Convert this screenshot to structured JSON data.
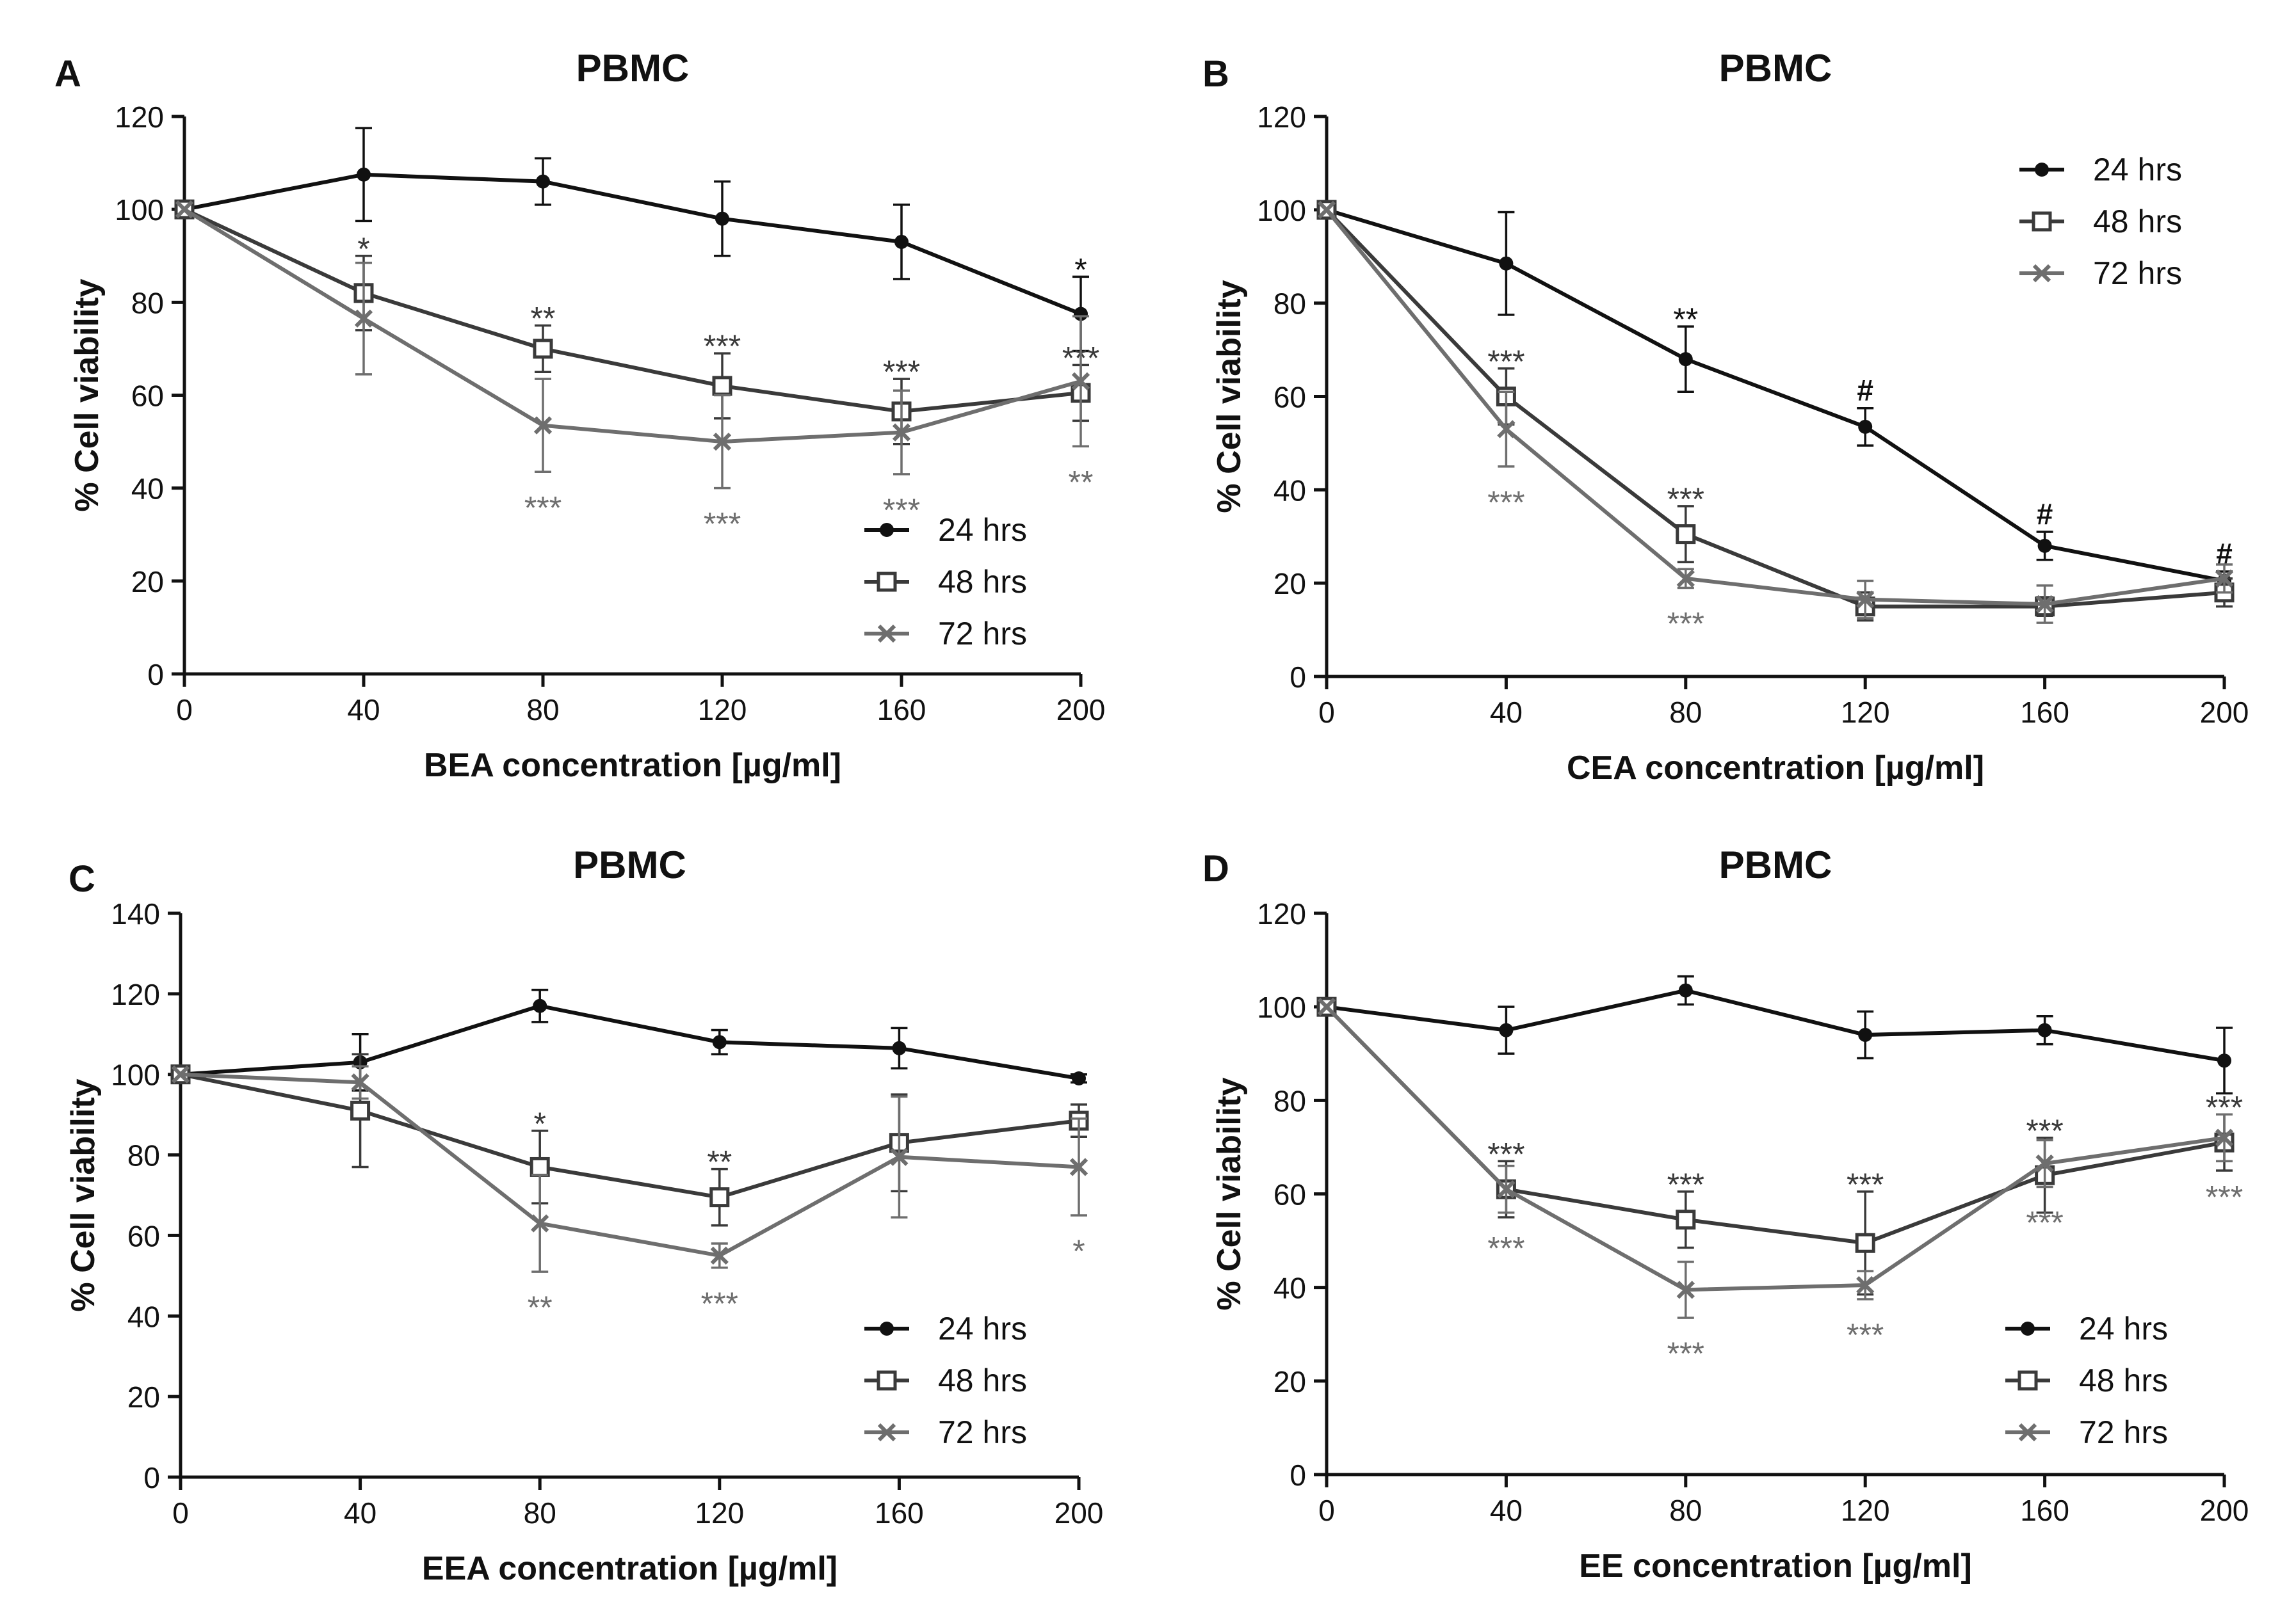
{
  "chart_data": [
    {
      "panel_label": "A",
      "type": "line",
      "title": "PBMC",
      "xlabel": "BEA concentration [µg/ml]",
      "ylabel": "% Cell viability",
      "x": [
        0,
        40,
        80,
        120,
        160,
        200
      ],
      "xlim": [
        0,
        200
      ],
      "ylim": [
        0,
        120
      ],
      "yticks": [
        0,
        20,
        40,
        60,
        80,
        100,
        120
      ],
      "legend_position": "bottom-right",
      "series": [
        {
          "name": "24 hrs",
          "marker": "dot",
          "color": "#111111",
          "values": [
            100,
            107.5,
            106,
            98,
            93,
            77.5
          ],
          "errors": [
            0,
            10,
            5,
            8,
            8,
            8
          ],
          "annotations": [
            "",
            "",
            "",
            "",
            "",
            "*"
          ]
        },
        {
          "name": "48 hrs",
          "marker": "square",
          "color": "#3a3a3a",
          "values": [
            100,
            82,
            70,
            62,
            56.5,
            60.5
          ],
          "errors": [
            0,
            8,
            5,
            7,
            7,
            6
          ],
          "annotations": [
            "",
            "*",
            "**",
            "***",
            "***",
            "***"
          ]
        },
        {
          "name": "72 hrs",
          "marker": "cross",
          "color": "#6e6e6e",
          "values": [
            100,
            76.5,
            53.5,
            50,
            52,
            63
          ],
          "errors": [
            0,
            12,
            10,
            10,
            9,
            14
          ],
          "annotations": [
            "",
            "",
            "***",
            "***",
            "***",
            "**"
          ]
        }
      ]
    },
    {
      "panel_label": "B",
      "type": "line",
      "title": "PBMC",
      "xlabel": "CEA concentration [µg/ml]",
      "ylabel": "% Cell viability",
      "x": [
        0,
        40,
        80,
        120,
        160,
        200
      ],
      "xlim": [
        0,
        200
      ],
      "ylim": [
        0,
        120
      ],
      "yticks": [
        0,
        20,
        40,
        60,
        80,
        100,
        120
      ],
      "legend_position": "top-right",
      "series": [
        {
          "name": "24 hrs",
          "marker": "dot",
          "color": "#111111",
          "values": [
            100,
            88.5,
            68,
            53.5,
            28,
            20.5
          ],
          "errors": [
            0,
            11,
            7,
            4,
            3,
            2
          ],
          "annotations": [
            "",
            "",
            "**",
            "#",
            "#",
            "#"
          ]
        },
        {
          "name": "48 hrs",
          "marker": "square",
          "color": "#3a3a3a",
          "values": [
            100,
            60,
            30.5,
            15,
            15,
            18
          ],
          "errors": [
            0,
            6,
            6,
            3,
            2,
            3
          ],
          "annotations": [
            "",
            "***",
            "***",
            "",
            "",
            ""
          ]
        },
        {
          "name": "72 hrs",
          "marker": "cross",
          "color": "#6e6e6e",
          "values": [
            100,
            53,
            21,
            16.5,
            15.5,
            21
          ],
          "errors": [
            0,
            8,
            2,
            4,
            4,
            3
          ],
          "annotations": [
            "",
            "***",
            "***",
            "",
            "",
            ""
          ]
        }
      ]
    },
    {
      "panel_label": "C",
      "type": "line",
      "title": "PBMC",
      "xlabel": "EEA concentration [µg/ml]",
      "ylabel": "% Cell viability",
      "x": [
        0,
        40,
        80,
        120,
        160,
        200
      ],
      "xlim": [
        0,
        200
      ],
      "ylim": [
        0,
        140
      ],
      "yticks": [
        0,
        20,
        40,
        60,
        80,
        100,
        120,
        140
      ],
      "legend_position": "bottom-right",
      "series": [
        {
          "name": "24 hrs",
          "marker": "dot",
          "color": "#111111",
          "values": [
            100,
            103,
            117,
            108,
            106.5,
            99
          ],
          "errors": [
            0,
            7,
            4,
            3,
            5,
            1
          ],
          "annotations": [
            "",
            "",
            "",
            "",
            "",
            ""
          ]
        },
        {
          "name": "48 hrs",
          "marker": "square",
          "color": "#3a3a3a",
          "values": [
            100,
            91,
            77,
            69.5,
            83,
            88.5
          ],
          "errors": [
            0,
            14,
            9,
            7,
            12,
            4
          ],
          "annotations": [
            "",
            "",
            "*",
            "**",
            "",
            ""
          ]
        },
        {
          "name": "72 hrs",
          "marker": "cross",
          "color": "#6e6e6e",
          "values": [
            100,
            98,
            63,
            55,
            79.5,
            77
          ],
          "errors": [
            0,
            4,
            12,
            3,
            15,
            12
          ],
          "annotations": [
            "",
            "",
            "**",
            "***",
            "",
            "*"
          ]
        }
      ]
    },
    {
      "panel_label": "D",
      "type": "line",
      "title": "PBMC",
      "xlabel": "EE concentration [µg/ml]",
      "ylabel": "% Cell viability",
      "x": [
        0,
        40,
        80,
        120,
        160,
        200
      ],
      "xlim": [
        0,
        200
      ],
      "ylim": [
        0,
        120
      ],
      "yticks": [
        0,
        20,
        40,
        60,
        80,
        100,
        120
      ],
      "legend_position": "bottom-right",
      "series": [
        {
          "name": "24 hrs",
          "marker": "dot",
          "color": "#111111",
          "values": [
            100,
            95,
            103.5,
            94,
            95,
            88.5
          ],
          "errors": [
            0,
            5,
            3,
            5,
            3,
            7
          ],
          "annotations": [
            "",
            "",
            "",
            "",
            "",
            ""
          ]
        },
        {
          "name": "48 hrs",
          "marker": "square",
          "color": "#3a3a3a",
          "values": [
            100,
            61,
            54.5,
            49.5,
            64,
            71
          ],
          "errors": [
            0,
            6,
            6,
            11,
            8,
            6
          ],
          "annotations": [
            "",
            "***",
            "***",
            "***",
            "***",
            "***"
          ]
        },
        {
          "name": "72 hrs",
          "marker": "cross",
          "color": "#6e6e6e",
          "values": [
            100,
            61,
            39.5,
            40.5,
            66.5,
            72
          ],
          "errors": [
            0,
            5,
            6,
            3,
            5,
            5
          ],
          "annotations": [
            "",
            "***",
            "***",
            "***",
            "***",
            "***"
          ]
        }
      ]
    }
  ]
}
